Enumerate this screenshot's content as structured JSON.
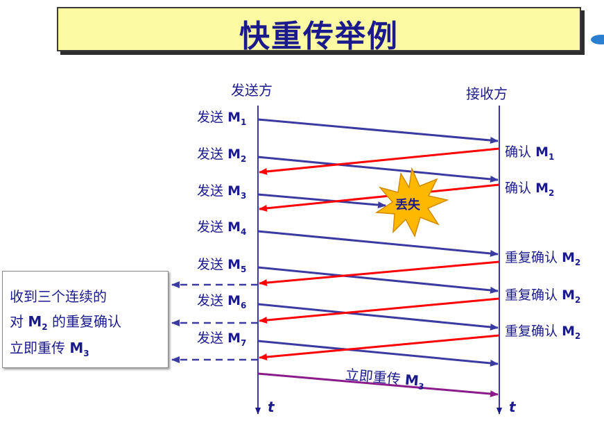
{
  "title": "快重传举例",
  "sender_label": "发送方",
  "receiver_label": "接收方",
  "time_label": "t",
  "send_word": "发送",
  "messages": [
    {
      "base": "M",
      "sub": "1"
    },
    {
      "base": "M",
      "sub": "2"
    },
    {
      "base": "M",
      "sub": "3"
    },
    {
      "base": "M",
      "sub": "4"
    },
    {
      "base": "M",
      "sub": "5"
    },
    {
      "base": "M",
      "sub": "6"
    },
    {
      "base": "M",
      "sub": "7"
    }
  ],
  "acks": [
    {
      "prefix": "确认",
      "base": "M",
      "sub": "1"
    },
    {
      "prefix": "确认",
      "base": "M",
      "sub": "2"
    },
    {
      "prefix": "重复确认",
      "base": "M",
      "sub": "2"
    },
    {
      "prefix": "重复确认",
      "base": "M",
      "sub": "2"
    },
    {
      "prefix": "重复确认",
      "base": "M",
      "sub": "2"
    }
  ],
  "lost_label": "丢失",
  "note": {
    "line1": "收到三个连续的",
    "line2_prefix": "对",
    "line2_base": "M",
    "line2_sub": "2",
    "line2_suffix": "的重复确认",
    "line3_prefix": "立即重传",
    "line3_base": "M",
    "line3_sub": "3"
  },
  "resend": {
    "prefix": "立即重传",
    "base": "M",
    "sub": "3"
  },
  "colors": {
    "title_bg": "#fbfaa3",
    "title_text": "#1b1a8c",
    "send_arrow": "#3a3aa0",
    "ack_arrow": "#ff0000",
    "resend_arrow": "#8b1a8b",
    "lost_burst": "#ffb800"
  }
}
